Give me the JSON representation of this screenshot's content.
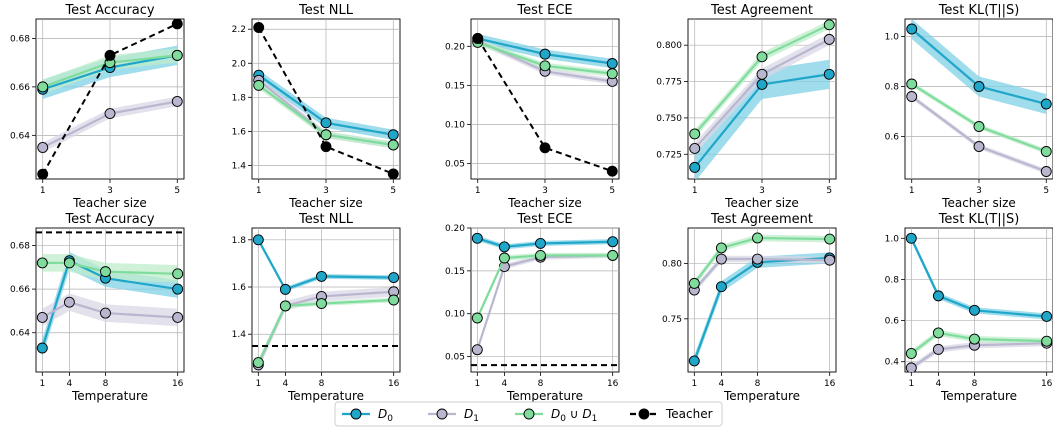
{
  "colors": {
    "D0": "#1fa6c9",
    "D0_band": "#7fd0e6",
    "D1": "#b9b7cf",
    "D1_band": "#d8d7e6",
    "D0uD1": "#7fdc9c",
    "D0uD1_band": "#bdeccb",
    "Teacher": "#000000"
  },
  "legend": {
    "placement": "bottom-center",
    "items": [
      {
        "key": "D0",
        "label": "D",
        "sub": "0"
      },
      {
        "key": "D1",
        "label": "D",
        "sub": "1"
      },
      {
        "key": "D0uD1",
        "label": "D",
        "sub": "0",
        "mid": " ∪ D",
        "sub2": "1"
      },
      {
        "key": "Teacher",
        "label": "Teacher",
        "sub": ""
      }
    ]
  },
  "chart_data": [
    {
      "type": "line",
      "title": "Test Accuracy",
      "xlabel": "Teacher size",
      "x": [
        1,
        3,
        5
      ],
      "xticks": [
        "1",
        "3",
        "5"
      ],
      "xlim": [
        0.8,
        5.2
      ],
      "ylim": [
        0.622,
        0.688
      ],
      "yticks": [
        "0.64",
        "0.66",
        "0.68"
      ],
      "grid": true,
      "series": [
        {
          "name": "D0",
          "values": [
            0.659,
            0.668,
            0.673
          ],
          "band": 0.004
        },
        {
          "name": "D1",
          "values": [
            0.635,
            0.649,
            0.654
          ],
          "band": 0.002
        },
        {
          "name": "D0uD1",
          "values": [
            0.66,
            0.67,
            0.673
          ],
          "band": 0.003
        },
        {
          "name": "Teacher",
          "values": [
            0.624,
            0.673,
            0.686
          ],
          "dashed": true
        }
      ]
    },
    {
      "type": "line",
      "title": "Test NLL",
      "xlabel": "Teacher size",
      "x": [
        1,
        3,
        5
      ],
      "xticks": [
        "1",
        "3",
        "5"
      ],
      "xlim": [
        0.8,
        5.2
      ],
      "ylim": [
        1.32,
        2.26
      ],
      "yticks": [
        "1.4",
        "1.6",
        "1.8",
        "2.0",
        "2.2"
      ],
      "grid": true,
      "series": [
        {
          "name": "D0",
          "values": [
            1.93,
            1.65,
            1.58
          ],
          "band": 0.03
        },
        {
          "name": "D1",
          "values": [
            1.9,
            1.58,
            1.52
          ],
          "band": 0.02
        },
        {
          "name": "D0uD1",
          "values": [
            1.87,
            1.58,
            1.52
          ],
          "band": 0.02
        },
        {
          "name": "Teacher",
          "values": [
            2.21,
            1.51,
            1.35
          ],
          "dashed": true
        }
      ]
    },
    {
      "type": "line",
      "title": "Test ECE",
      "xlabel": "Teacher size",
      "x": [
        1,
        3,
        5
      ],
      "xticks": [
        "1",
        "3",
        "5"
      ],
      "xlim": [
        0.8,
        5.2
      ],
      "ylim": [
        0.03,
        0.235
      ],
      "yticks": [
        "0.05",
        "0.10",
        "0.15",
        "0.20"
      ],
      "grid": true,
      "series": [
        {
          "name": "D0",
          "values": [
            0.21,
            0.19,
            0.178
          ],
          "band": 0.006
        },
        {
          "name": "D1",
          "values": [
            0.207,
            0.168,
            0.155
          ],
          "band": 0.004
        },
        {
          "name": "D0uD1",
          "values": [
            0.205,
            0.175,
            0.165
          ],
          "band": 0.004
        },
        {
          "name": "Teacher",
          "values": [
            0.21,
            0.07,
            0.04
          ],
          "dashed": true
        }
      ]
    },
    {
      "type": "line",
      "title": "Test Agreement",
      "xlabel": "Teacher size",
      "x": [
        1,
        3,
        5
      ],
      "xticks": [
        "1",
        "3",
        "5"
      ],
      "xlim": [
        0.8,
        5.2
      ],
      "ylim": [
        0.708,
        0.818
      ],
      "yticks": [
        "0.725",
        "0.750",
        "0.775",
        "0.800"
      ],
      "grid": true,
      "series": [
        {
          "name": "D0",
          "values": [
            0.716,
            0.773,
            0.78
          ],
          "band": 0.01
        },
        {
          "name": "D1",
          "values": [
            0.729,
            0.78,
            0.804
          ],
          "band": 0.004
        },
        {
          "name": "D0uD1",
          "values": [
            0.739,
            0.792,
            0.814
          ],
          "band": 0.003
        }
      ]
    },
    {
      "type": "line",
      "title": "Test KL(T||S)",
      "xlabel": "Teacher size",
      "x": [
        1,
        3,
        5
      ],
      "xticks": [
        "1",
        "3",
        "5"
      ],
      "xlim": [
        0.8,
        5.2
      ],
      "ylim": [
        0.43,
        1.07
      ],
      "yticks": [
        "0.6",
        "0.8",
        "1.0"
      ],
      "grid": true,
      "series": [
        {
          "name": "D0",
          "values": [
            1.03,
            0.8,
            0.73
          ],
          "band": 0.04
        },
        {
          "name": "D1",
          "values": [
            0.76,
            0.56,
            0.46
          ],
          "band": 0.01
        },
        {
          "name": "D0uD1",
          "values": [
            0.81,
            0.64,
            0.54
          ],
          "band": 0.01
        }
      ]
    },
    {
      "type": "line",
      "title": "Test Accuracy",
      "xlabel": "Temperature",
      "x": [
        1,
        4,
        8,
        16
      ],
      "xticks": [
        "1",
        "4",
        "8",
        "16"
      ],
      "xlim": [
        0.3,
        16.7
      ],
      "ylim": [
        0.622,
        0.688
      ],
      "yticks": [
        "0.64",
        "0.66",
        "0.68"
      ],
      "grid": true,
      "series": [
        {
          "name": "D0",
          "values": [
            0.633,
            0.673,
            0.665,
            0.66
          ],
          "band": 0.004
        },
        {
          "name": "D1",
          "values": [
            0.647,
            0.654,
            0.649,
            0.647
          ],
          "band": 0.004
        },
        {
          "name": "D0uD1",
          "values": [
            0.672,
            0.672,
            0.668,
            0.667
          ],
          "band": 0.004
        },
        {
          "name": "Teacher",
          "values": [
            0.686,
            0.686,
            0.686,
            0.686
          ],
          "dashed": true,
          "markers": false
        }
      ]
    },
    {
      "type": "line",
      "title": "Test NLL",
      "xlabel": "Temperature",
      "x": [
        1,
        4,
        8,
        16
      ],
      "xticks": [
        "1",
        "4",
        "8",
        "16"
      ],
      "xlim": [
        0.3,
        16.7
      ],
      "ylim": [
        1.24,
        1.85
      ],
      "yticks": [
        "1.4",
        "1.6",
        "1.8"
      ],
      "grid": true,
      "series": [
        {
          "name": "D0",
          "values": [
            1.8,
            1.59,
            1.645,
            1.64
          ],
          "band": 0.01
        },
        {
          "name": "D1",
          "values": [
            1.27,
            1.52,
            1.56,
            1.58
          ],
          "band": 0.02
        },
        {
          "name": "D0uD1",
          "values": [
            1.28,
            1.52,
            1.53,
            1.545
          ],
          "band": 0.01
        },
        {
          "name": "Teacher",
          "values": [
            1.35,
            1.35,
            1.35,
            1.35
          ],
          "dashed": true,
          "markers": false
        }
      ]
    },
    {
      "type": "line",
      "title": "Test ECE",
      "xlabel": "Temperature",
      "x": [
        1,
        4,
        8,
        16
      ],
      "xticks": [
        "1",
        "4",
        "8",
        "16"
      ],
      "xlim": [
        0.3,
        16.7
      ],
      "ylim": [
        0.032,
        0.2
      ],
      "yticks": [
        "0.05",
        "0.10",
        "0.15",
        "0.20"
      ],
      "grid": true,
      "series": [
        {
          "name": "D0",
          "values": [
            0.188,
            0.178,
            0.182,
            0.184
          ],
          "band": 0.003
        },
        {
          "name": "D1",
          "values": [
            0.058,
            0.155,
            0.166,
            0.168
          ],
          "band": 0.003
        },
        {
          "name": "D0uD1",
          "values": [
            0.095,
            0.165,
            0.168,
            0.168
          ],
          "band": 0.003
        },
        {
          "name": "Teacher",
          "values": [
            0.04,
            0.04,
            0.04,
            0.04
          ],
          "dashed": true,
          "markers": false
        }
      ]
    },
    {
      "type": "line",
      "title": "Test Agreement",
      "xlabel": "Temperature",
      "x": [
        1,
        4,
        8,
        16
      ],
      "xticks": [
        "1",
        "4",
        "8",
        "16"
      ],
      "xlim": [
        0.3,
        16.7
      ],
      "ylim": [
        0.702,
        0.832
      ],
      "yticks": [
        "0.75",
        "0.80"
      ],
      "grid": true,
      "series": [
        {
          "name": "D0",
          "values": [
            0.712,
            0.779,
            0.801,
            0.805
          ],
          "band": 0.005
        },
        {
          "name": "D1",
          "values": [
            0.776,
            0.804,
            0.804,
            0.803
          ],
          "band": 0.003
        },
        {
          "name": "D0uD1",
          "values": [
            0.782,
            0.814,
            0.823,
            0.822
          ],
          "band": 0.003
        }
      ]
    },
    {
      "type": "line",
      "title": "Test KL(T||S)",
      "xlabel": "Temperature",
      "x": [
        1,
        4,
        8,
        16
      ],
      "xticks": [
        "1",
        "4",
        "8",
        "16"
      ],
      "xlim": [
        0.3,
        16.7
      ],
      "ylim": [
        0.35,
        1.05
      ],
      "yticks": [
        "0.4",
        "0.6",
        "0.8",
        "1.0"
      ],
      "grid": true,
      "series": [
        {
          "name": "D0",
          "values": [
            1.0,
            0.72,
            0.65,
            0.62
          ],
          "band": 0.015
        },
        {
          "name": "D1",
          "values": [
            0.37,
            0.46,
            0.48,
            0.49
          ],
          "band": 0.015
        },
        {
          "name": "D0uD1",
          "values": [
            0.44,
            0.54,
            0.51,
            0.5
          ],
          "band": 0.015
        }
      ]
    }
  ]
}
